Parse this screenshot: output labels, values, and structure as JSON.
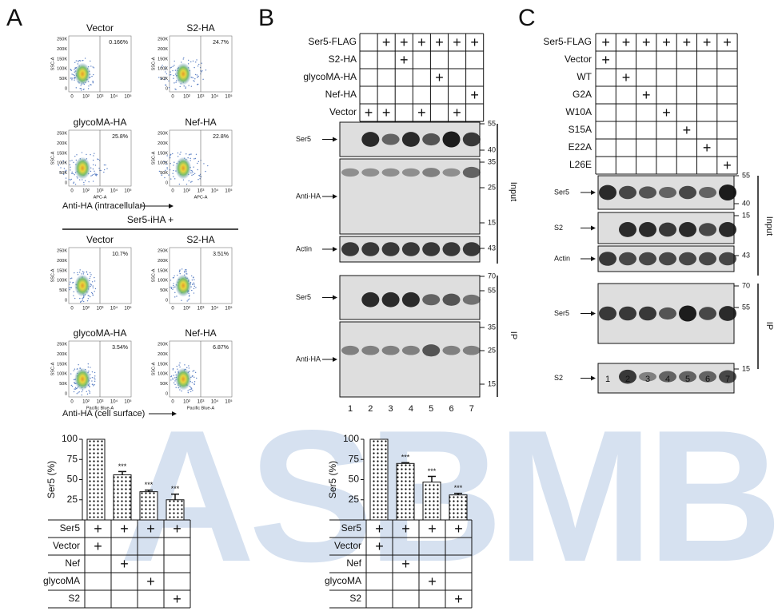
{
  "panel_labels": [
    "A",
    "B",
    "C"
  ],
  "watermark": "ASBMB",
  "panel_a": {
    "flow_axes": {
      "y_label": "SSC-A",
      "y_ticks": [
        "250K",
        "200K",
        "150K",
        "100K",
        "50K",
        "0"
      ],
      "x_ticks": [
        "0",
        "10²",
        "10³",
        "10⁴",
        "10⁵"
      ]
    },
    "intracellular": {
      "x_label": "APC-A",
      "caption": "Anti-HA (intracellular)",
      "plots": [
        {
          "title": "Vector",
          "percent": "0.166%"
        },
        {
          "title": "S2-HA",
          "percent": "24.7%"
        },
        {
          "title": "glycoMA-HA",
          "percent": "25.8%"
        },
        {
          "title": "Nef-HA",
          "percent": "22.8%"
        }
      ]
    },
    "surface": {
      "header": "Ser5-iHA +",
      "x_label": "Pacific Blue-A",
      "caption": "Anti-HA (cell surface)",
      "plots": [
        {
          "title": "Vector",
          "percent": "10.7%"
        },
        {
          "title": "S2-HA",
          "percent": "3.51%"
        },
        {
          "title": "glycoMA-HA",
          "percent": "3.54%"
        },
        {
          "title": "Nef-HA",
          "percent": "6.87%"
        }
      ]
    }
  },
  "panel_b": {
    "conditions": [
      {
        "label": "Ser5-FLAG",
        "marks": [
          null,
          "+",
          "+",
          "+",
          "+",
          "+",
          "+"
        ]
      },
      {
        "label": "S2-HA",
        "marks": [
          null,
          null,
          "+",
          null,
          null,
          null,
          null
        ]
      },
      {
        "label": "glycoMA-HA",
        "marks": [
          null,
          null,
          null,
          null,
          "+",
          null,
          null
        ]
      },
      {
        "label": "Nef-HA",
        "marks": [
          null,
          null,
          null,
          null,
          null,
          null,
          "+"
        ]
      },
      {
        "label": "Vector",
        "marks": [
          "+",
          "+",
          null,
          "+",
          null,
          "+",
          null
        ]
      }
    ],
    "blots": [
      {
        "label": "Ser5",
        "markers": [
          55,
          40
        ]
      },
      {
        "label": "Anti-HA",
        "markers": [
          35,
          25,
          15
        ]
      },
      {
        "label": "Actin",
        "markers": [
          43
        ]
      },
      {
        "label": "Ser5",
        "markers": [
          70,
          55
        ]
      },
      {
        "label": "Anti-HA",
        "markers": [
          35,
          25,
          15
        ]
      }
    ],
    "groups": [
      "Input",
      "IP"
    ],
    "lanes": [
      1,
      2,
      3,
      4,
      5,
      6,
      7
    ]
  },
  "panel_c": {
    "conditions": [
      {
        "label": "Ser5-FLAG",
        "marks": [
          "+",
          "+",
          "+",
          "+",
          "+",
          "+",
          "+"
        ]
      },
      {
        "label": "Vector",
        "marks": [
          "+",
          null,
          null,
          null,
          null,
          null,
          null
        ]
      },
      {
        "label": "WT",
        "marks": [
          null,
          "+",
          null,
          null,
          null,
          null,
          null
        ]
      },
      {
        "label": "G2A",
        "marks": [
          null,
          null,
          "+",
          null,
          null,
          null,
          null
        ]
      },
      {
        "label": "W10A",
        "marks": [
          null,
          null,
          null,
          "+",
          null,
          null,
          null
        ]
      },
      {
        "label": "S15A",
        "marks": [
          null,
          null,
          null,
          null,
          "+",
          null,
          null
        ]
      },
      {
        "label": "E22A",
        "marks": [
          null,
          null,
          null,
          null,
          null,
          "+",
          null
        ]
      },
      {
        "label": "L26E",
        "marks": [
          null,
          null,
          null,
          null,
          null,
          null,
          "+"
        ]
      }
    ],
    "blots": [
      {
        "label": "Ser5",
        "markers": [
          55,
          40
        ]
      },
      {
        "label": "S2",
        "markers": [
          15
        ]
      },
      {
        "label": "Actin",
        "markers": [
          43
        ]
      },
      {
        "label": "Ser5",
        "markers": [
          70,
          55
        ]
      },
      {
        "label": "S2",
        "markers": [
          15
        ]
      }
    ],
    "groups": [
      "Input",
      "IP"
    ],
    "lanes": [
      1,
      2,
      3,
      4,
      5,
      6,
      7
    ]
  },
  "chart_data": [
    {
      "type": "bar",
      "y_label": "Ser5 (%)",
      "ylim": [
        0,
        100
      ],
      "yticks": [
        25,
        50,
        75,
        100
      ],
      "values": [
        100,
        56,
        35,
        25
      ],
      "errors": [
        null,
        4,
        2,
        7
      ],
      "annotations": [
        null,
        "***",
        "***",
        "***"
      ],
      "table": [
        {
          "label": "Ser5",
          "marks": [
            "+",
            "+",
            "+",
            "+"
          ]
        },
        {
          "label": "Vector",
          "marks": [
            "+",
            null,
            null,
            null
          ]
        },
        {
          "label": "Nef",
          "marks": [
            null,
            "+",
            null,
            null
          ]
        },
        {
          "label": "glycoMA",
          "marks": [
            null,
            null,
            "+",
            null
          ]
        },
        {
          "label": "S2",
          "marks": [
            null,
            null,
            null,
            "+"
          ]
        }
      ]
    },
    {
      "type": "bar",
      "y_label": "Ser5 (%)",
      "ylim": [
        0,
        100
      ],
      "yticks": [
        25,
        50,
        75,
        100
      ],
      "values": [
        100,
        70,
        47,
        31
      ],
      "errors": [
        null,
        1,
        7,
        2
      ],
      "annotations": [
        null,
        "***",
        "***",
        "***"
      ],
      "table": [
        {
          "label": "Ser5",
          "marks": [
            "+",
            "+",
            "+",
            "+"
          ]
        },
        {
          "label": "Vector",
          "marks": [
            "+",
            null,
            null,
            null
          ]
        },
        {
          "label": "Nef",
          "marks": [
            null,
            "+",
            null,
            null
          ]
        },
        {
          "label": "glycoMA",
          "marks": [
            null,
            null,
            "+",
            null
          ]
        },
        {
          "label": "S2",
          "marks": [
            null,
            null,
            null,
            "+"
          ]
        }
      ]
    }
  ]
}
